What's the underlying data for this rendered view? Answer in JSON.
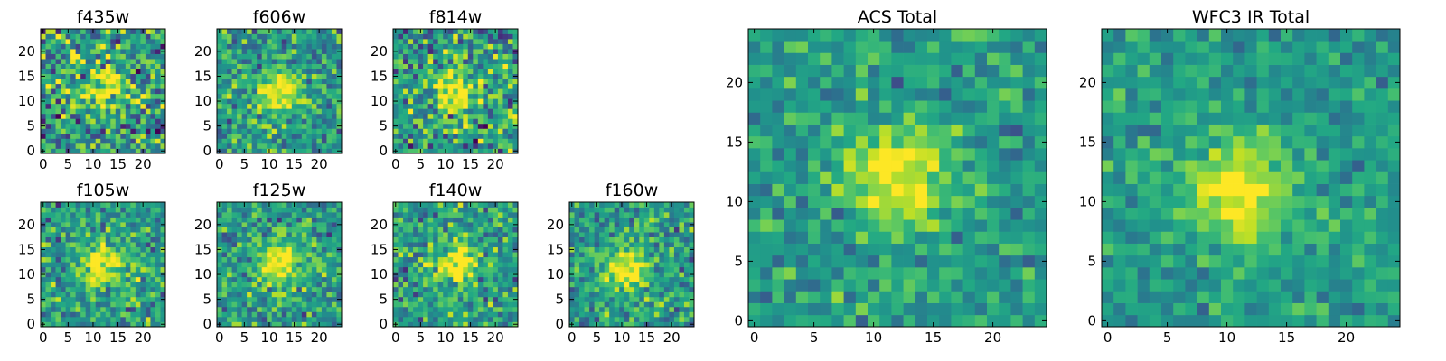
{
  "chart_data": [
    {
      "type": "heatmap",
      "title": "f435w",
      "colormap": "viridis",
      "grid": false,
      "xlim": [
        0,
        25
      ],
      "ylim": [
        0,
        25
      ],
      "xticks": [
        0,
        5,
        10,
        15,
        20
      ],
      "yticks": [
        0,
        5,
        10,
        15,
        20
      ],
      "peak": [
        12,
        12
      ],
      "noise": 0.75,
      "seed": 11
    },
    {
      "type": "heatmap",
      "title": "f606w",
      "colormap": "viridis",
      "grid": false,
      "xlim": [
        0,
        25
      ],
      "ylim": [
        0,
        25
      ],
      "xticks": [
        0,
        5,
        10,
        15,
        20
      ],
      "yticks": [
        0,
        5,
        10,
        15,
        20
      ],
      "peak": [
        12,
        12
      ],
      "noise": 0.55,
      "seed": 23
    },
    {
      "type": "heatmap",
      "title": "f814w",
      "colormap": "viridis",
      "grid": false,
      "xlim": [
        0,
        25
      ],
      "ylim": [
        0,
        25
      ],
      "xticks": [
        0,
        5,
        10,
        15,
        20
      ],
      "yticks": [
        0,
        5,
        10,
        15,
        20
      ],
      "peak": [
        12,
        12
      ],
      "noise": 0.7,
      "seed": 37
    },
    {
      "type": "heatmap",
      "title": "f105w",
      "colormap": "viridis",
      "grid": false,
      "xlim": [
        0,
        25
      ],
      "ylim": [
        0,
        25
      ],
      "xticks": [
        0,
        5,
        10,
        15,
        20
      ],
      "yticks": [
        0,
        5,
        10,
        15,
        20
      ],
      "peak": [
        12,
        12
      ],
      "noise": 0.55,
      "seed": 41
    },
    {
      "type": "heatmap",
      "title": "f125w",
      "colormap": "viridis",
      "grid": false,
      "xlim": [
        0,
        25
      ],
      "ylim": [
        0,
        25
      ],
      "xticks": [
        0,
        5,
        10,
        15,
        20
      ],
      "yticks": [
        0,
        5,
        10,
        15,
        20
      ],
      "peak": [
        12,
        12
      ],
      "noise": 0.5,
      "seed": 53
    },
    {
      "type": "heatmap",
      "title": "f140w",
      "colormap": "viridis",
      "grid": false,
      "xlim": [
        0,
        25
      ],
      "ylim": [
        0,
        25
      ],
      "xticks": [
        0,
        5,
        10,
        15,
        20
      ],
      "yticks": [
        0,
        5,
        10,
        15,
        20
      ],
      "peak": [
        12,
        12
      ],
      "noise": 0.55,
      "seed": 67
    },
    {
      "type": "heatmap",
      "title": "f160w",
      "colormap": "viridis",
      "grid": false,
      "xlim": [
        0,
        25
      ],
      "ylim": [
        0,
        25
      ],
      "xticks": [
        0,
        5,
        10,
        15,
        20
      ],
      "yticks": [
        0,
        5,
        10,
        15,
        20
      ],
      "peak": [
        11,
        11
      ],
      "noise": 0.5,
      "seed": 79
    },
    {
      "type": "heatmap",
      "title": "ACS Total",
      "colormap": "viridis",
      "grid": false,
      "xlim": [
        0,
        25
      ],
      "ylim": [
        0,
        25
      ],
      "xticks": [
        0,
        5,
        10,
        15,
        20
      ],
      "yticks": [
        0,
        5,
        10,
        15,
        20
      ],
      "peak": [
        12,
        12
      ],
      "noise": 0.38,
      "seed": 97
    },
    {
      "type": "heatmap",
      "title": "WFC3 IR Total",
      "colormap": "viridis",
      "grid": false,
      "xlim": [
        0,
        25
      ],
      "ylim": [
        0,
        25
      ],
      "xticks": [
        0,
        5,
        10,
        15,
        20
      ],
      "yticks": [
        0,
        5,
        10,
        15,
        20
      ],
      "peak": [
        11,
        11
      ],
      "noise": 0.32,
      "seed": 131
    }
  ]
}
